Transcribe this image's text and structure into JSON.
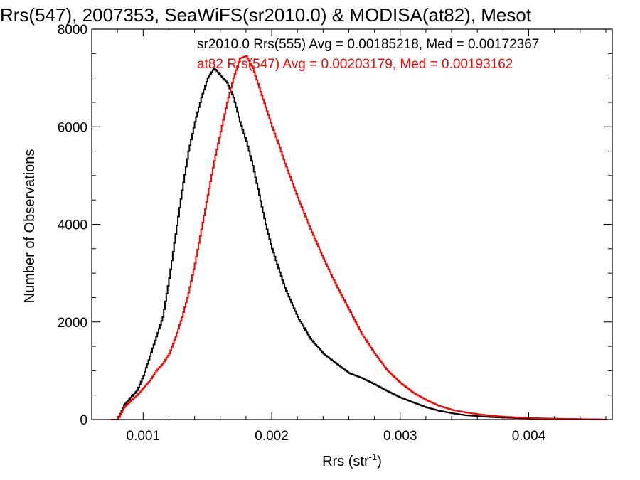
{
  "chart_data": {
    "type": "line",
    "title": "Rrs(547), 2007353, SeaWiFS(sr2010.0) & MODISA(at82), Mesot",
    "xlabel": "Rrs (str",
    "xlabel_sup": "-1",
    "xlabel_end": ")",
    "ylabel": "Number of Observations",
    "xlim": [
      0.0006,
      0.00465
    ],
    "ylim": [
      0,
      8000
    ],
    "x_ticks": [
      0.001,
      0.002,
      0.003,
      0.004
    ],
    "x_tick_labels": [
      "0.001",
      "0.002",
      "0.003",
      "0.004"
    ],
    "y_ticks": [
      0,
      2000,
      4000,
      6000,
      8000
    ],
    "y_tick_labels": [
      "0",
      "2000",
      "4000",
      "6000",
      "8000"
    ],
    "grid": false,
    "legend": {
      "placement": "top-right",
      "entries": [
        "sr2010.0 Rrs(555) Avg = 0.00185218, Med = 0.00172367",
        "at82 Rrs(547) Avg = 0.00203179, Med = 0.00193162"
      ]
    },
    "series": [
      {
        "name": "sr2010.0 Rrs(555) Avg = 0.00185218, Med = 0.00172367",
        "color": "#000000",
        "x": [
          0.00075,
          0.0008,
          0.00085,
          0.0009,
          0.00095,
          0.001,
          0.00105,
          0.0011,
          0.00115,
          0.0012,
          0.00125,
          0.0013,
          0.00135,
          0.0014,
          0.00145,
          0.0015,
          0.00155,
          0.0016,
          0.00165,
          0.0017,
          0.00175,
          0.0018,
          0.00185,
          0.0019,
          0.00195,
          0.002,
          0.0021,
          0.0022,
          0.0023,
          0.0024,
          0.0025,
          0.0026,
          0.0027,
          0.0028,
          0.0029,
          0.003,
          0.0031,
          0.0032,
          0.0033,
          0.0034,
          0.0035,
          0.0036,
          0.0037,
          0.0038,
          0.0039,
          0.004,
          0.0041,
          0.0042,
          0.0043,
          0.0044,
          0.0045,
          0.0046
        ],
        "y": [
          0,
          0,
          300,
          450,
          600,
          900,
          1300,
          1700,
          2100,
          2900,
          3800,
          4700,
          5500,
          6100,
          6600,
          7000,
          7200,
          7050,
          6900,
          6600,
          6100,
          5700,
          5200,
          4600,
          4000,
          3500,
          2700,
          2100,
          1650,
          1350,
          1150,
          950,
          850,
          720,
          580,
          450,
          350,
          250,
          180,
          130,
          90,
          70,
          50,
          40,
          30,
          25,
          20,
          15,
          10,
          8,
          5,
          0
        ]
      },
      {
        "name": "at82 Rrs(547) Avg = 0.00203179, Med = 0.00193162",
        "color": "#ff0000",
        "x": [
          0.00075,
          0.0008,
          0.00085,
          0.0009,
          0.00095,
          0.001,
          0.00105,
          0.0011,
          0.00115,
          0.0012,
          0.00125,
          0.0013,
          0.00135,
          0.0014,
          0.00145,
          0.0015,
          0.00155,
          0.0016,
          0.00165,
          0.0017,
          0.00175,
          0.0018,
          0.00185,
          0.0019,
          0.00195,
          0.002,
          0.00205,
          0.0021,
          0.00215,
          0.0022,
          0.0023,
          0.0024,
          0.0025,
          0.0026,
          0.0027,
          0.0028,
          0.0029,
          0.003,
          0.0031,
          0.0032,
          0.0033,
          0.0034,
          0.0035,
          0.0036,
          0.0037,
          0.0038,
          0.0039,
          0.004,
          0.0041,
          0.0042,
          0.0043,
          0.0044,
          0.0045,
          0.0046
        ],
        "y": [
          0,
          0,
          250,
          380,
          500,
          650,
          800,
          1000,
          1150,
          1350,
          1700,
          2100,
          2600,
          3200,
          3900,
          4600,
          5300,
          5900,
          6500,
          7000,
          7400,
          7450,
          7200,
          6800,
          6400,
          6000,
          5650,
          5250,
          4900,
          4550,
          3900,
          3300,
          2750,
          2250,
          1750,
          1350,
          1000,
          750,
          550,
          400,
          280,
          200,
          150,
          110,
          80,
          60,
          45,
          35,
          25,
          20,
          15,
          10,
          5,
          0
        ]
      }
    ]
  }
}
